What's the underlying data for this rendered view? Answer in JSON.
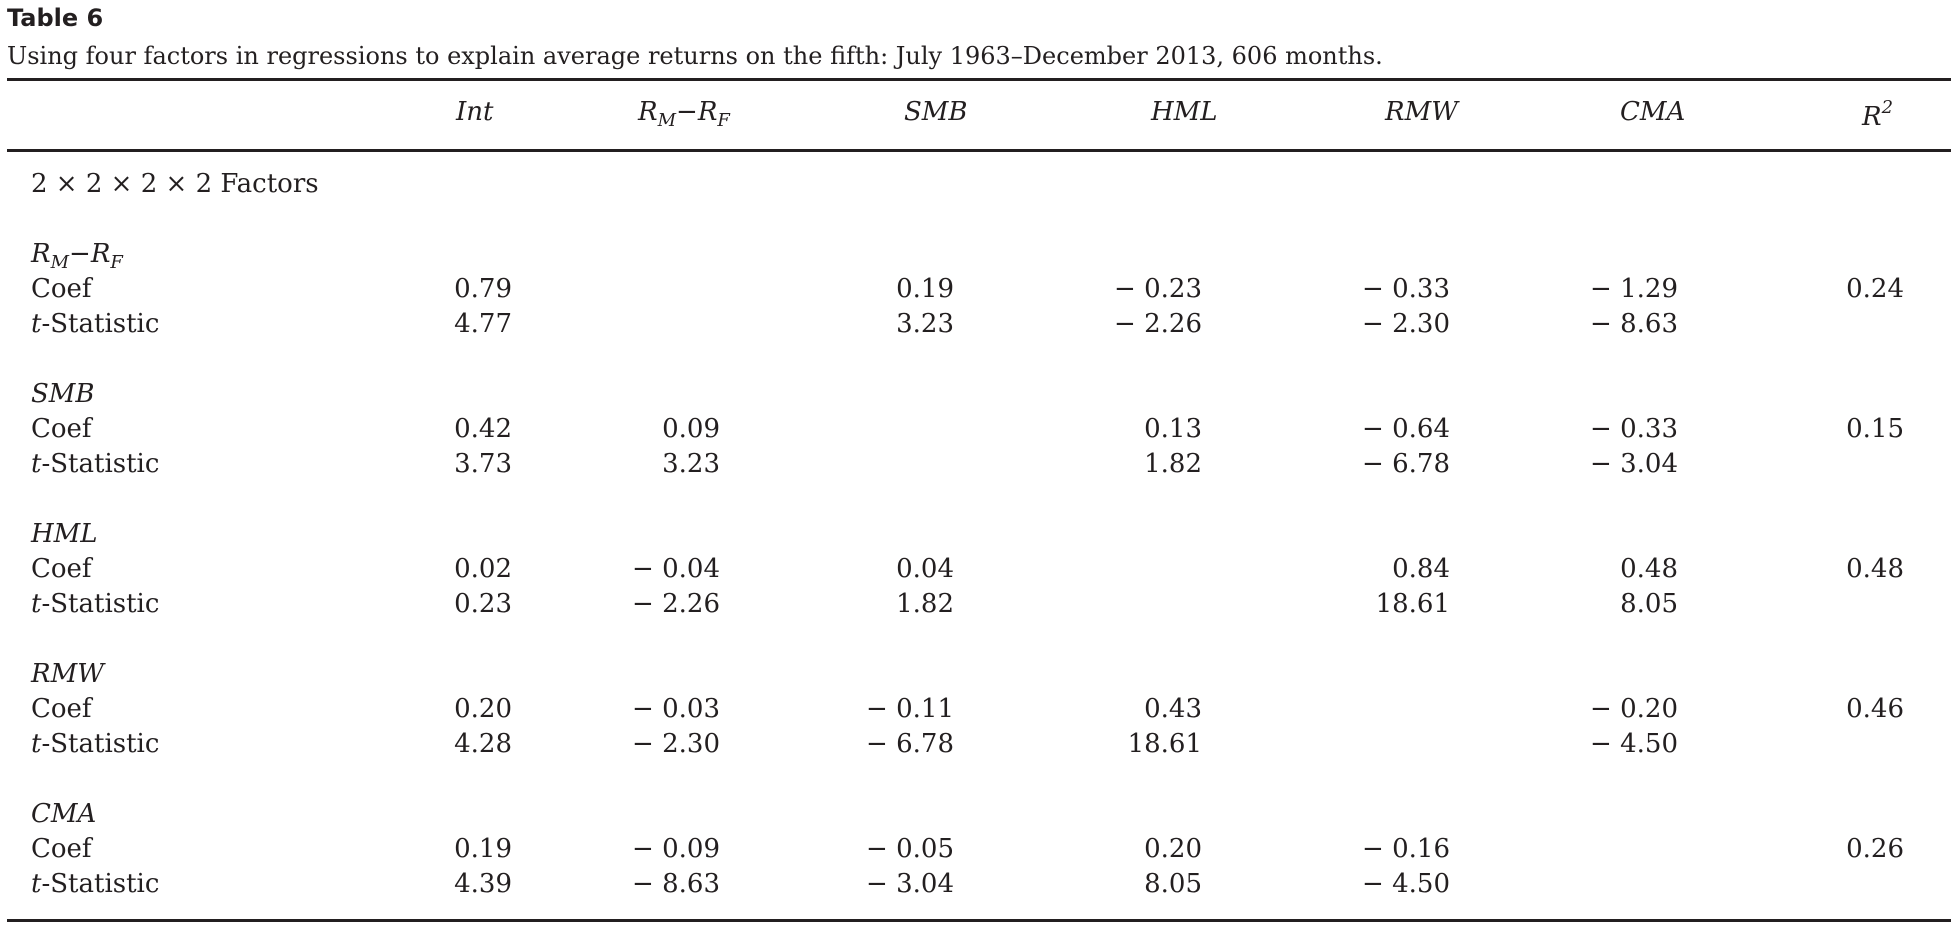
{
  "table": {
    "label": "Table 6",
    "caption": "Using four factors in regressions to explain average returns on the fifth: July 1963–December 2013, 606 months.",
    "columns": {
      "int": "Int",
      "rmrf_main": "R",
      "rmrf_sub1": "M",
      "rmrf_minus": "−",
      "rmrf_sub2": "F",
      "smb": "SMB",
      "hml": "HML",
      "rmw": "RMW",
      "cma": "CMA",
      "r2_main": "R",
      "r2_sup": "2"
    },
    "section_title": "2 × 2 × 2 × 2 Factors",
    "coef_label": "Coef",
    "tstat_prefix": "t",
    "tstat_suffix": "-Statistic",
    "blocks": [
      {
        "title": "R",
        "title_sub1": "M",
        "title_minus": "−",
        "title_rest": "R",
        "title_sub2": "F",
        "coef": [
          "0.79",
          "",
          "0.19",
          "− 0.23",
          "− 0.33",
          "− 1.29",
          "0.24"
        ],
        "tstat": [
          "4.77",
          "",
          "3.23",
          "− 2.26",
          "− 2.30",
          "− 8.63",
          ""
        ]
      },
      {
        "title": "SMB",
        "coef": [
          "0.42",
          "0.09",
          "",
          "0.13",
          "− 0.64",
          "− 0.33",
          "0.15"
        ],
        "tstat": [
          "3.73",
          "3.23",
          "",
          "1.82",
          "− 6.78",
          "− 3.04",
          ""
        ]
      },
      {
        "title": "HML",
        "coef": [
          "0.02",
          "− 0.04",
          "0.04",
          "",
          "0.84",
          "0.48",
          "0.48"
        ],
        "tstat": [
          "0.23",
          "− 2.26",
          "1.82",
          "",
          "18.61",
          "8.05",
          ""
        ]
      },
      {
        "title": "RMW",
        "coef": [
          "0.20",
          "− 0.03",
          "− 0.11",
          "0.43",
          "",
          "− 0.20",
          "0.46"
        ],
        "tstat": [
          "4.28",
          "− 2.30",
          "− 6.78",
          "18.61",
          "",
          "− 4.50",
          ""
        ]
      },
      {
        "title": "CMA",
        "coef": [
          "0.19",
          "− 0.09",
          "− 0.05",
          "0.20",
          "− 0.16",
          "",
          "0.26"
        ],
        "tstat": [
          "4.39",
          "− 8.63",
          "− 3.04",
          "8.05",
          "− 4.50",
          "",
          ""
        ]
      }
    ]
  }
}
